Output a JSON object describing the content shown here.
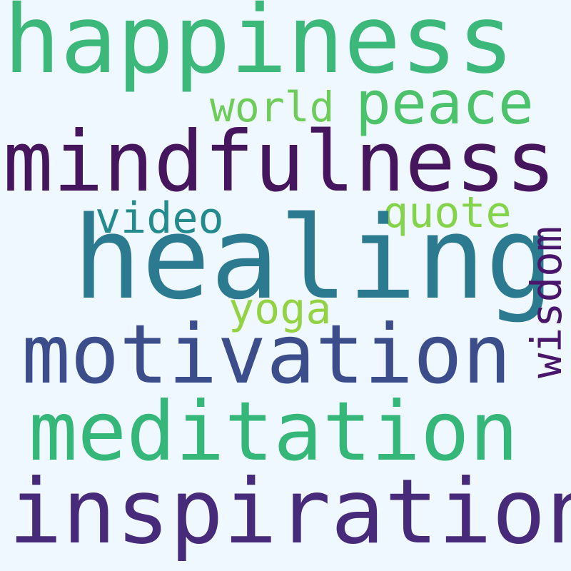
{
  "background_color": "#f0f8ff",
  "words": [
    {
      "text": "happiness",
      "color": "#3cb87a"
    },
    {
      "text": "peace",
      "color": "#4cc36b"
    },
    {
      "text": "world",
      "color": "#6ecc5a"
    },
    {
      "text": "mindfulness",
      "color": "#45165e"
    },
    {
      "text": "video",
      "color": "#238b8d"
    },
    {
      "text": "quote",
      "color": "#84d44b"
    },
    {
      "text": "healing",
      "color": "#2b7a8f"
    },
    {
      "text": "wisdom",
      "color": "#48166a",
      "orientation": "vertical"
    },
    {
      "text": "yoga",
      "color": "#93d343"
    },
    {
      "text": "motivation",
      "color": "#3b4e8b"
    },
    {
      "text": "meditation",
      "color": "#35b779"
    },
    {
      "text": "inspiration",
      "color": "#472a7a"
    }
  ]
}
